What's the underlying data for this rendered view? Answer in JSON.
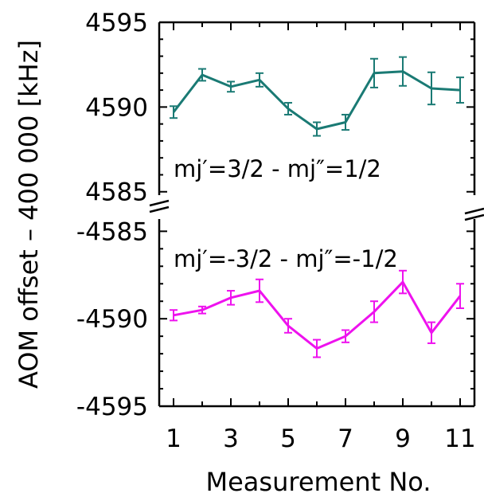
{
  "chart_data": {
    "type": "line",
    "xlabel": "Measurement No.",
    "ylabel": "AOM offset – 400 000 [kHz]",
    "x": [
      1,
      2,
      3,
      4,
      5,
      6,
      7,
      8,
      9,
      10,
      11
    ],
    "x_ticks": [
      1,
      3,
      5,
      7,
      9,
      11
    ],
    "xlim": [
      0.5,
      11.5
    ],
    "axis_break": true,
    "panels": [
      {
        "ylim": [
          4584.8,
          4595
        ],
        "y_ticks": [
          4585,
          4590,
          4595
        ],
        "y_tick_labels": [
          "4585",
          "4590",
          "4595"
        ],
        "series": [
          {
            "name": "",
            "color": "#1a7a74",
            "label": "mj′=3/2 - mj″=1/2",
            "values": [
              4589.7,
              4591.9,
              4591.2,
              4591.6,
              4589.9,
              4588.7,
              4589.1,
              4592.0,
              4592.1,
              4591.1,
              4591.0
            ],
            "errors": [
              0.35,
              0.35,
              0.3,
              0.4,
              0.35,
              0.4,
              0.45,
              0.85,
              0.85,
              0.95,
              0.75
            ]
          }
        ]
      },
      {
        "ylim": [
          -4595,
          -4584.3
        ],
        "y_ticks": [
          -4595,
          -4590,
          -4585
        ],
        "y_tick_labels": [
          "-4595",
          "-4590",
          "-4585"
        ],
        "series": [
          {
            "name": "",
            "color": "#ee12ee",
            "label": "mj′=-3/2 - mj″=-1/2",
            "values": [
              -4589.8,
              -4589.5,
              -4588.8,
              -4588.4,
              -4590.4,
              -4591.7,
              -4591.0,
              -4589.6,
              -4587.9,
              -4590.8,
              -4588.7
            ],
            "errors": [
              0.3,
              0.2,
              0.4,
              0.65,
              0.4,
              0.5,
              0.35,
              0.6,
              0.65,
              0.6,
              0.7
            ]
          }
        ]
      }
    ]
  }
}
